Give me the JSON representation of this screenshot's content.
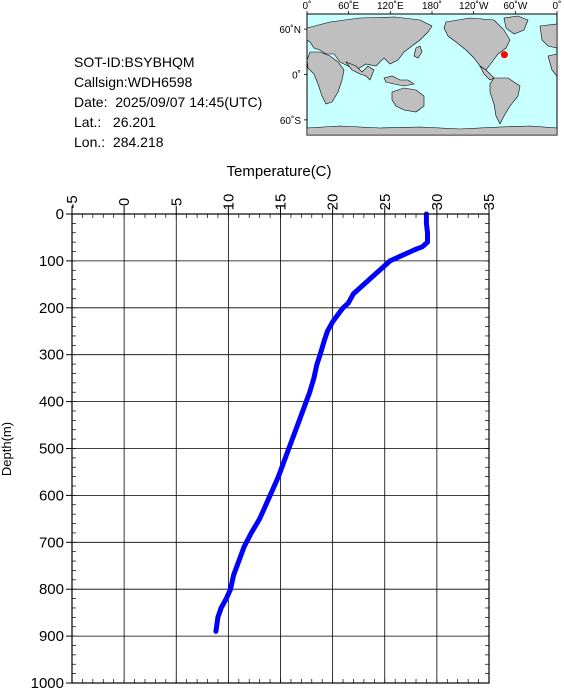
{
  "info": {
    "sot_id": "SOT-ID:BSYBHQM",
    "callsign": "Callsign:WDH6598",
    "date": "Date:  2025/09/07 14:45(UTC)",
    "lat": "Lat.:   26.201",
    "lon": "Lon.:  284.218"
  },
  "map": {
    "lon_labels": [
      "0˚",
      "60˚E",
      "120˚E",
      "180˚",
      "120˚W",
      "60˚W",
      "0˚"
    ],
    "lat_labels": [
      "60˚N",
      "0˚",
      "60˚S"
    ],
    "marker": {
      "lat": 26.201,
      "lon": 284.218,
      "color": "#ff0000"
    },
    "ocean_color": "#c8ffff",
    "land_color": "#bfbfbf"
  },
  "chart_data": {
    "type": "line",
    "xlabel": "Temperature(C)",
    "ylabel": "Depth(m)",
    "xlim": [
      -5,
      35
    ],
    "ylim": [
      0,
      1000
    ],
    "y_inverted": true,
    "x_ticks": [
      -5,
      0,
      5,
      10,
      15,
      20,
      25,
      30,
      35
    ],
    "y_ticks": [
      0,
      100,
      200,
      300,
      400,
      500,
      600,
      700,
      800,
      900,
      1000
    ],
    "grid": true,
    "series": [
      {
        "color": "#0000ff",
        "x": [
          29.0,
          29.0,
          29.1,
          29.1,
          28.6,
          28.0,
          27.5,
          26.5,
          25.5,
          25.0,
          24.0,
          23.0,
          22.0,
          21.5,
          21.0,
          20.5,
          20.0,
          19.5,
          19.2,
          18.8,
          18.5,
          18.2,
          17.8,
          17.3,
          16.8,
          16.3,
          15.8,
          15.3,
          14.8,
          14.2,
          13.6,
          13.0,
          12.2,
          11.5,
          11.0,
          10.5,
          10.2,
          9.8,
          9.3,
          9.0,
          8.8
        ],
        "y": [
          0,
          20,
          40,
          60,
          70,
          75,
          80,
          90,
          100,
          110,
          130,
          150,
          170,
          190,
          200,
          215,
          230,
          250,
          270,
          300,
          320,
          350,
          380,
          410,
          440,
          470,
          500,
          530,
          560,
          590,
          620,
          650,
          680,
          710,
          740,
          770,
          800,
          820,
          840,
          860,
          890
        ]
      }
    ]
  }
}
